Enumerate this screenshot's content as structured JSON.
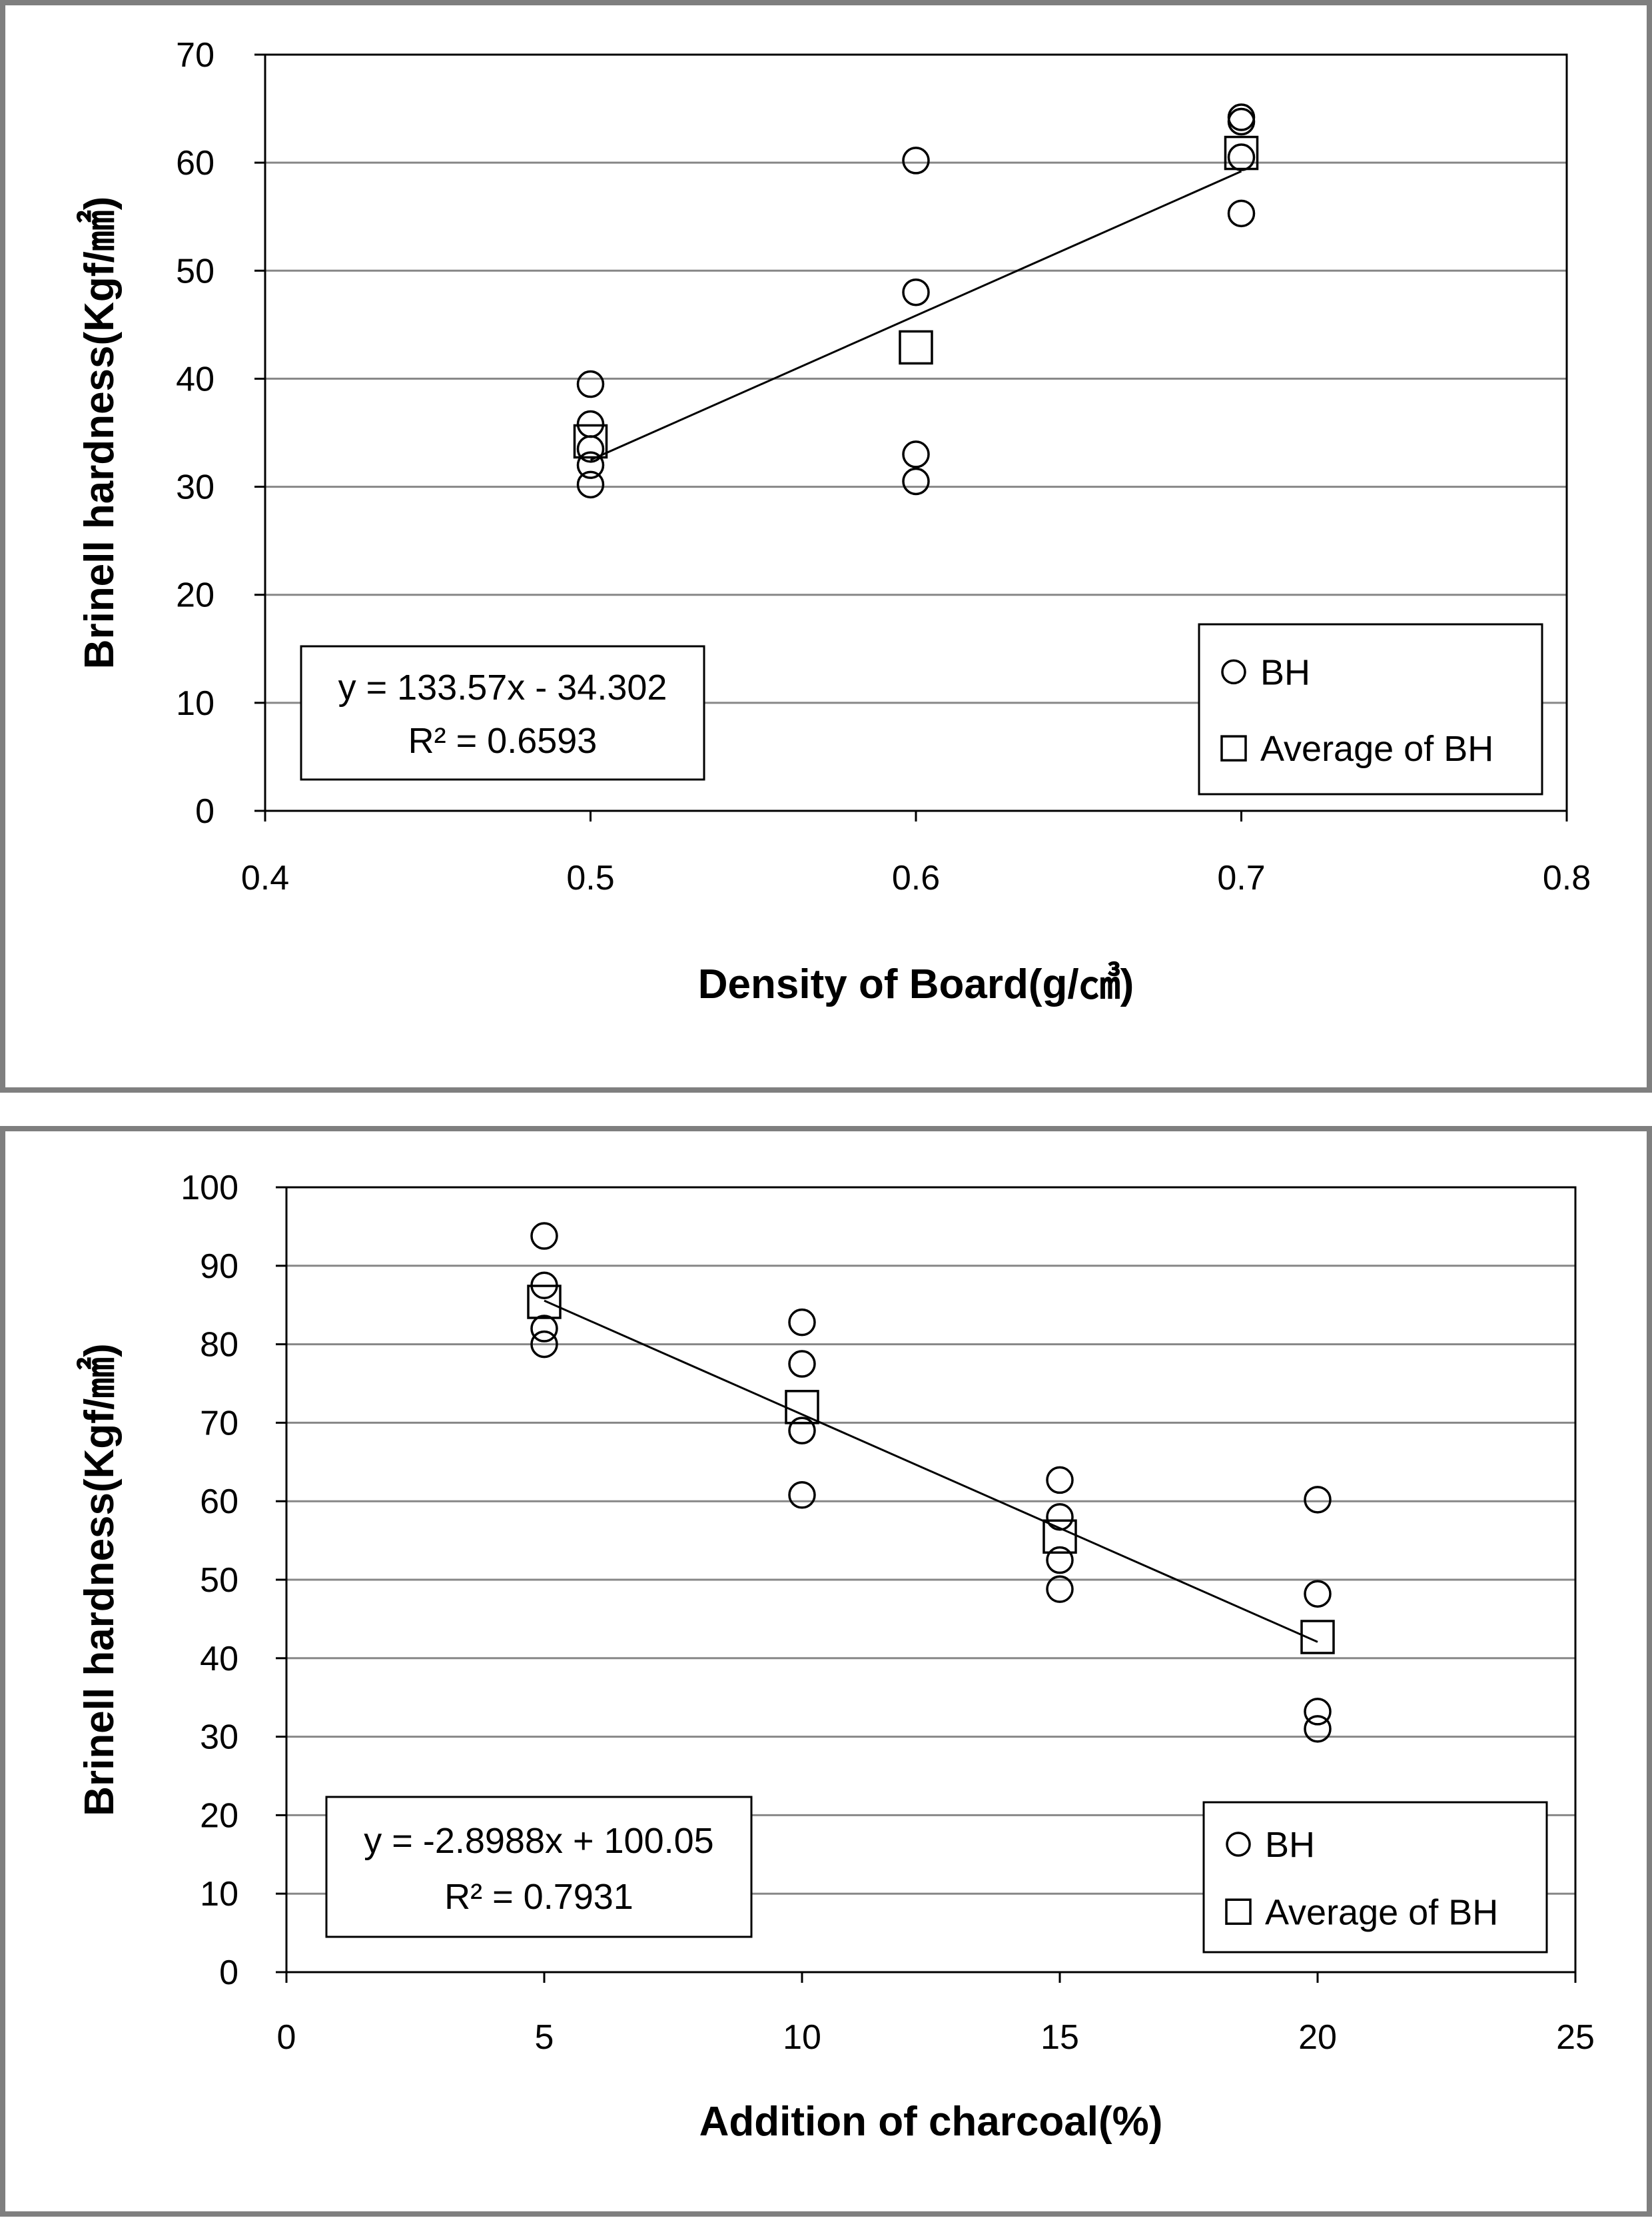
{
  "chart_data": [
    {
      "type": "scatter",
      "xlabel": "Density of Board(g/㎤)",
      "ylabel": "Brinell hardness(Kgf/㎟)",
      "xlim": [
        0.4,
        0.8
      ],
      "ylim": [
        0,
        70
      ],
      "xticks": [
        0.4,
        0.5,
        0.6,
        0.7,
        0.8
      ],
      "xtick_labels": [
        "0.4",
        "0.5",
        "0.6",
        "0.7",
        "0.8"
      ],
      "yticks": [
        0,
        10,
        20,
        30,
        40,
        50,
        60,
        70
      ],
      "ytick_labels": [
        "0",
        "10",
        "20",
        "30",
        "40",
        "50",
        "60",
        "70"
      ],
      "grid": "horizontal",
      "legend_position": "bottom-right",
      "series": [
        {
          "name": "BH",
          "marker": "circle",
          "points": [
            [
              0.5,
              39.5
            ],
            [
              0.5,
              35.8
            ],
            [
              0.5,
              33.5
            ],
            [
              0.5,
              32.0
            ],
            [
              0.5,
              30.2
            ],
            [
              0.6,
              60.2
            ],
            [
              0.6,
              48.0
            ],
            [
              0.6,
              33.0
            ],
            [
              0.6,
              30.5
            ],
            [
              0.7,
              64.2
            ],
            [
              0.7,
              63.8
            ],
            [
              0.7,
              60.5
            ],
            [
              0.7,
              55.3
            ]
          ]
        },
        {
          "name": "Average of BH",
          "marker": "square",
          "points": [
            [
              0.5,
              34.2
            ],
            [
              0.6,
              42.9
            ],
            [
              0.7,
              60.9
            ]
          ]
        }
      ],
      "trendline": {
        "slope": 133.57,
        "intercept": -34.302,
        "x_range": [
          0.5,
          0.7
        ]
      },
      "equation": "y = 133.57x - 34.302",
      "r2": "R² = 0.6593"
    },
    {
      "type": "scatter",
      "xlabel": "Addition of charcoal(%)",
      "ylabel": "Brinell hardness(Kgf/㎟)",
      "xlim": [
        0,
        25
      ],
      "ylim": [
        0,
        100
      ],
      "xticks": [
        0,
        5,
        10,
        15,
        20,
        25
      ],
      "xtick_labels": [
        "0",
        "5",
        "10",
        "15",
        "20",
        "25"
      ],
      "yticks": [
        0,
        10,
        20,
        30,
        40,
        50,
        60,
        70,
        80,
        90,
        100
      ],
      "ytick_labels": [
        "0",
        "10",
        "20",
        "30",
        "40",
        "50",
        "60",
        "70",
        "80",
        "90",
        "100"
      ],
      "grid": "horizontal",
      "legend_position": "bottom-right",
      "series": [
        {
          "name": "BH",
          "marker": "circle",
          "points": [
            [
              5,
              93.8
            ],
            [
              5,
              87.5
            ],
            [
              5,
              82.0
            ],
            [
              5,
              80.0
            ],
            [
              10,
              82.8
            ],
            [
              10,
              77.5
            ],
            [
              10,
              69.0
            ],
            [
              10,
              60.8
            ],
            [
              15,
              62.7
            ],
            [
              15,
              58.0
            ],
            [
              15,
              52.5
            ],
            [
              15,
              48.8
            ],
            [
              20,
              60.2
            ],
            [
              20,
              48.2
            ],
            [
              20,
              33.2
            ],
            [
              20,
              31.0
            ]
          ]
        },
        {
          "name": "Average of BH",
          "marker": "square",
          "points": [
            [
              5,
              85.4
            ],
            [
              10,
              72.0
            ],
            [
              15,
              55.5
            ],
            [
              20,
              42.7
            ]
          ]
        }
      ],
      "trendline": {
        "slope": -2.8988,
        "intercept": 100.05,
        "x_range": [
          5,
          20
        ]
      },
      "equation": "y = -2.8988x + 100.05",
      "r2": "R² = 0.7931"
    }
  ]
}
